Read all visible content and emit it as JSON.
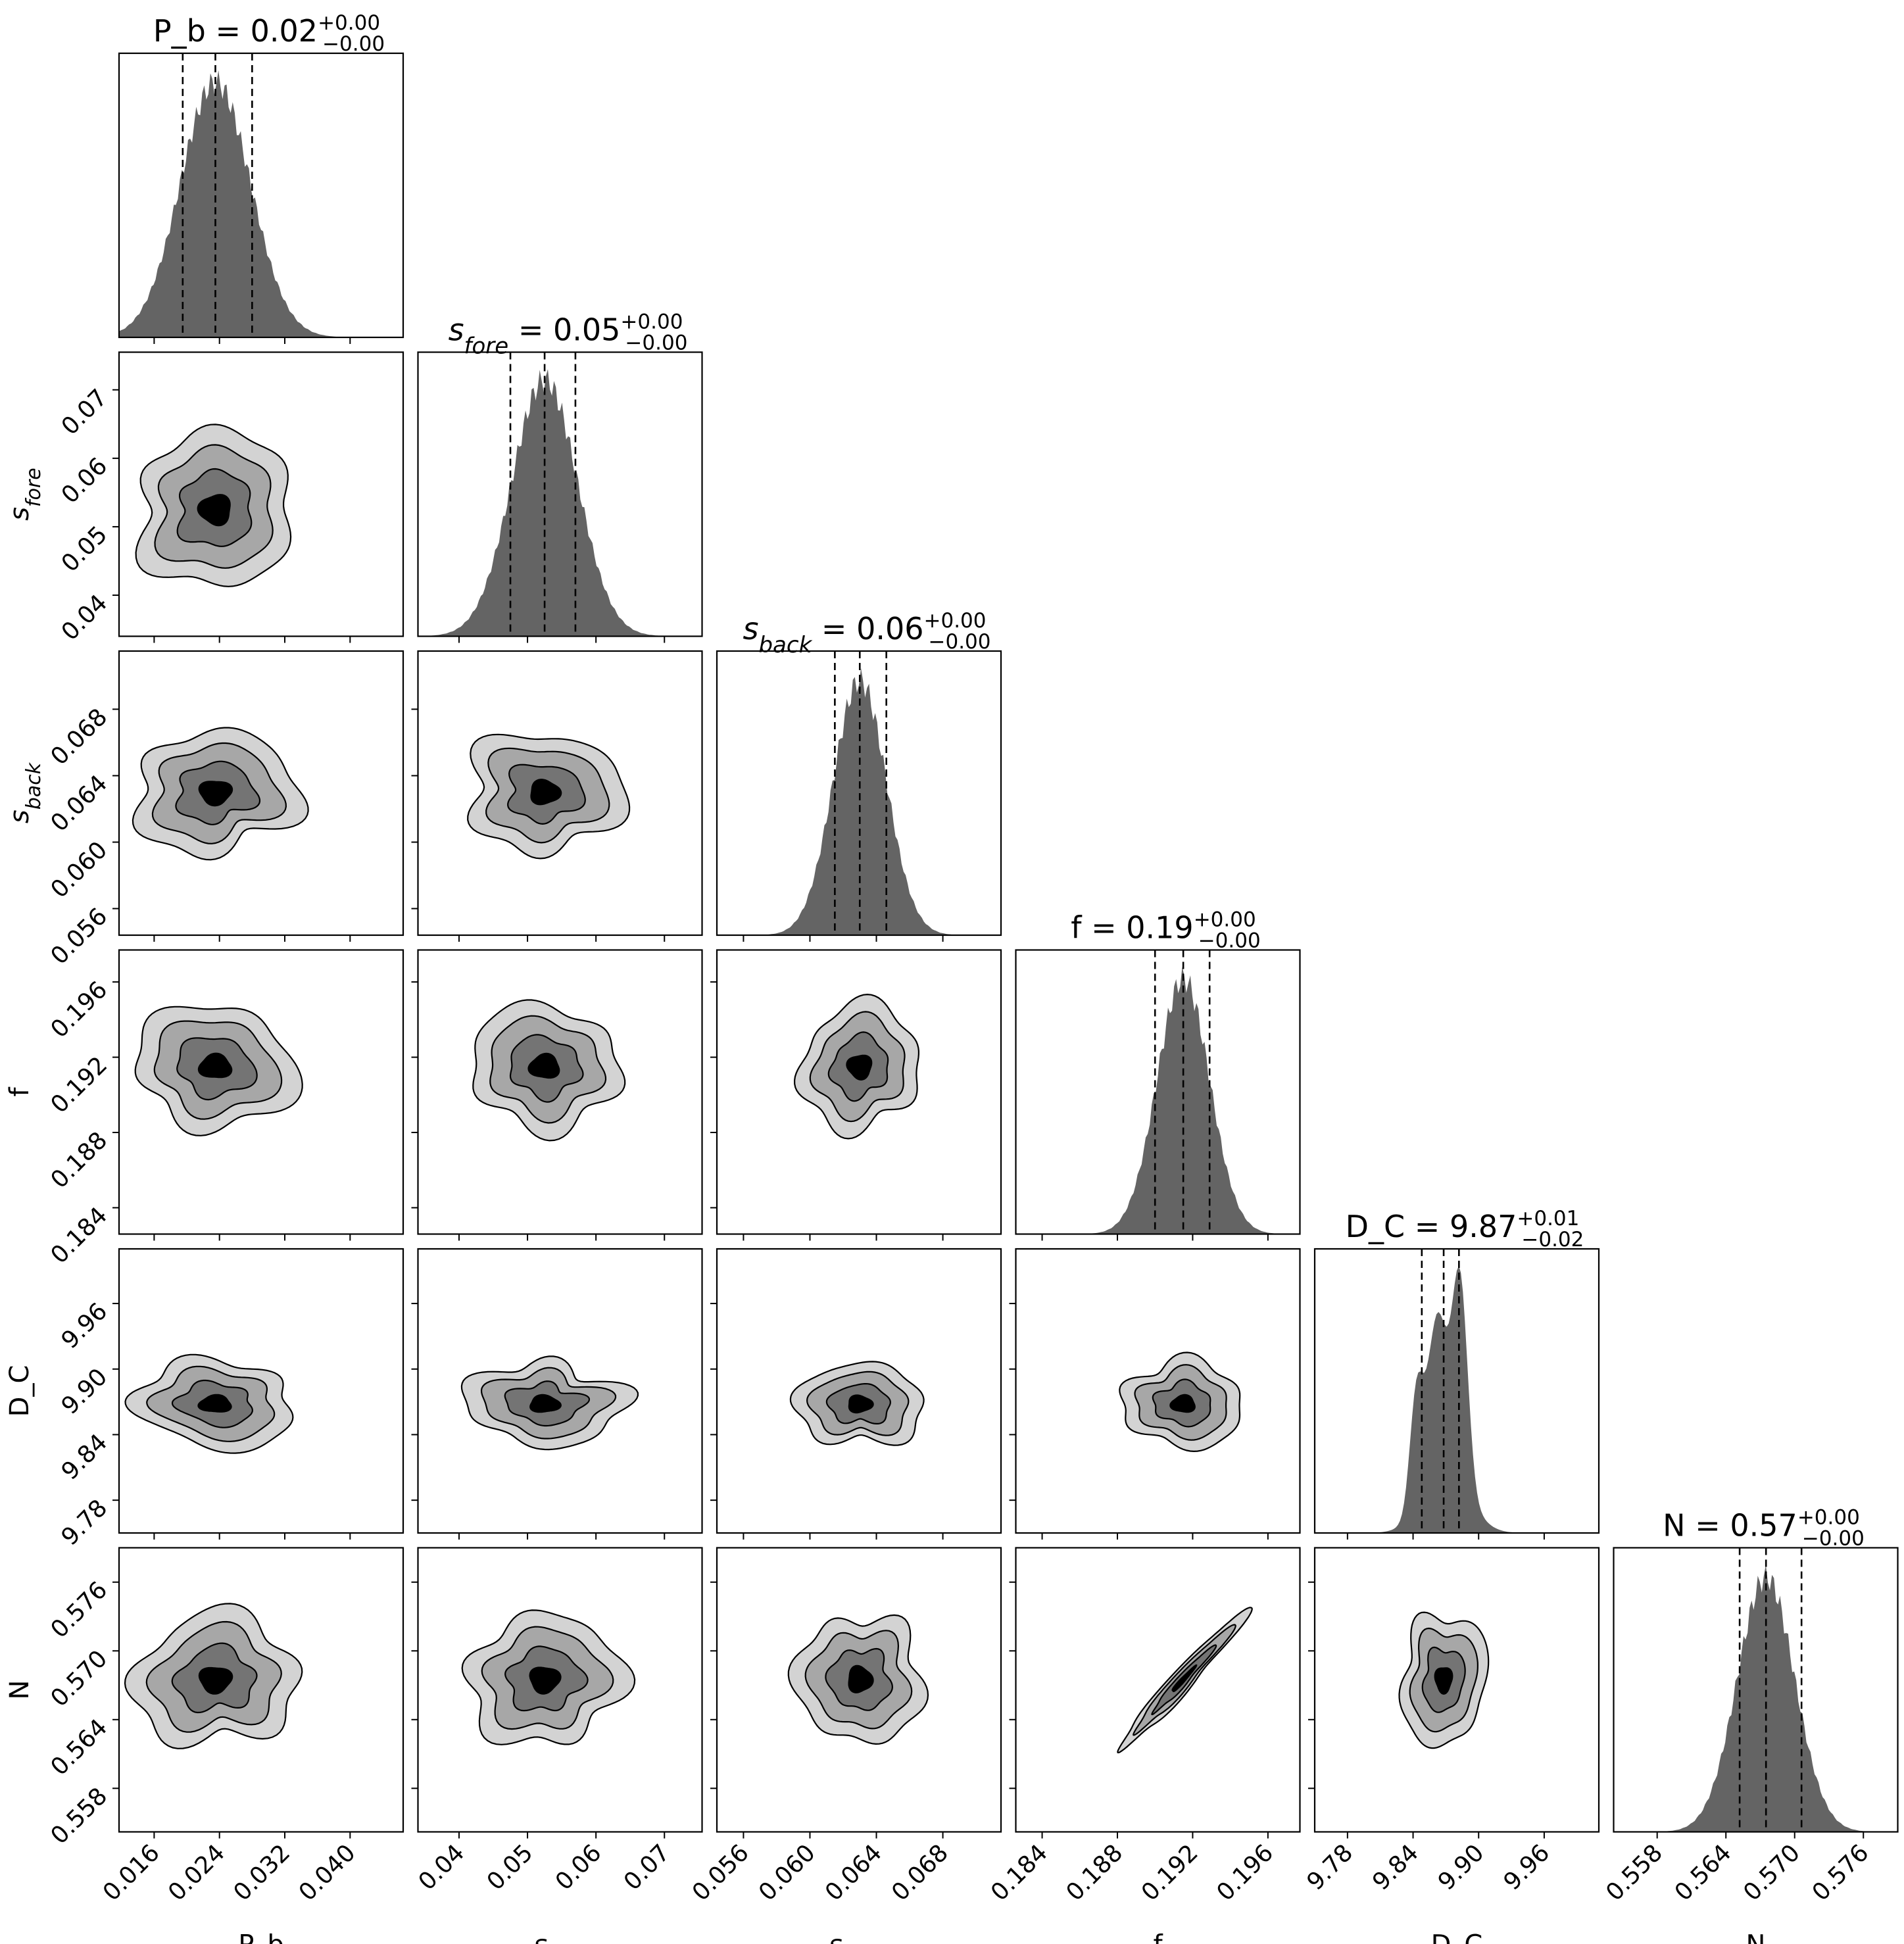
{
  "chart_data": {
    "type": "corner",
    "parameters": [
      {
        "key": "P_b",
        "label": "P_b",
        "label_base": "P_b",
        "label_sub": "",
        "median": 0.0235,
        "q16": 0.0195,
        "q84": 0.028,
        "std": 0.0043,
        "range": [
          0.0117,
          0.0465
        ],
        "ticks": [
          0.016,
          0.024,
          0.032,
          0.04
        ],
        "tick_labels": [
          "0.016",
          "0.024",
          "0.032",
          "0.040"
        ],
        "title_value": "0.02",
        "title_plus": "+0.00",
        "title_minus": "−0.00"
      },
      {
        "key": "s_fore",
        "label": "s_fore",
        "label_base": "s",
        "label_sub": "fore",
        "median": 0.0525,
        "q16": 0.0475,
        "q84": 0.057,
        "std": 0.0048,
        "range": [
          0.034,
          0.0755
        ],
        "ticks": [
          0.04,
          0.05,
          0.06,
          0.07
        ],
        "tick_labels": [
          "0.04",
          "0.05",
          "0.06",
          "0.07"
        ],
        "title_value": "0.05",
        "title_plus": "+0.00",
        "title_minus": "−0.00"
      },
      {
        "key": "s_back",
        "label": "s_back",
        "label_base": "s",
        "label_sub": "back",
        "median": 0.063,
        "q16": 0.0615,
        "q84": 0.0646,
        "std": 0.0016,
        "range": [
          0.0544,
          0.0715
        ],
        "ticks": [
          0.056,
          0.06,
          0.064,
          0.068
        ],
        "tick_labels": [
          "0.056",
          "0.060",
          "0.064",
          "0.068"
        ],
        "title_value": "0.06",
        "title_plus": "+0.00",
        "title_minus": "−0.00"
      },
      {
        "key": "f",
        "label": "f",
        "label_base": "f",
        "label_sub": "",
        "median": 0.1915,
        "q16": 0.19,
        "q84": 0.1929,
        "std": 0.0014,
        "range": [
          0.1826,
          0.1977
        ],
        "ticks": [
          0.184,
          0.188,
          0.192,
          0.196
        ],
        "tick_labels": [
          "0.184",
          "0.188",
          "0.192",
          "0.196"
        ],
        "title_value": "0.19",
        "title_plus": "+0.00",
        "title_minus": "−0.00"
      },
      {
        "key": "D_C",
        "label": "D_C",
        "label_base": "D_C",
        "label_sub": "",
        "median": 9.868,
        "q16": 9.848,
        "q84": 9.882,
        "std": 0.017,
        "range": [
          9.75,
          10.01
        ],
        "ticks": [
          9.78,
          9.84,
          9.9,
          9.96
        ],
        "tick_labels": [
          "9.78",
          "9.84",
          "9.90",
          "9.96"
        ],
        "title_value": "9.87",
        "title_plus": "+0.01",
        "title_minus": "−0.02"
      },
      {
        "key": "N",
        "label": "N",
        "label_base": "N",
        "label_sub": "",
        "median": 0.5675,
        "q16": 0.5652,
        "q84": 0.5706,
        "std": 0.0025,
        "range": [
          0.5542,
          0.579
        ],
        "ticks": [
          0.558,
          0.564,
          0.57,
          0.576
        ],
        "tick_labels": [
          "0.558",
          "0.564",
          "0.570",
          "0.576"
        ],
        "title_value": "0.57",
        "title_plus": "+0.00",
        "title_minus": "−0.00"
      }
    ],
    "correlations": {
      "N|f": 0.97
    },
    "contour_levels": 4,
    "quantiles": [
      0.16,
      0.5,
      0.84
    ],
    "colors": {
      "histogram": "#646464",
      "contour_fills": [
        "#d3d3d3",
        "#a7a7a7",
        "#747474",
        "#000000"
      ],
      "line": "#000000",
      "background": "#ffffff"
    }
  }
}
